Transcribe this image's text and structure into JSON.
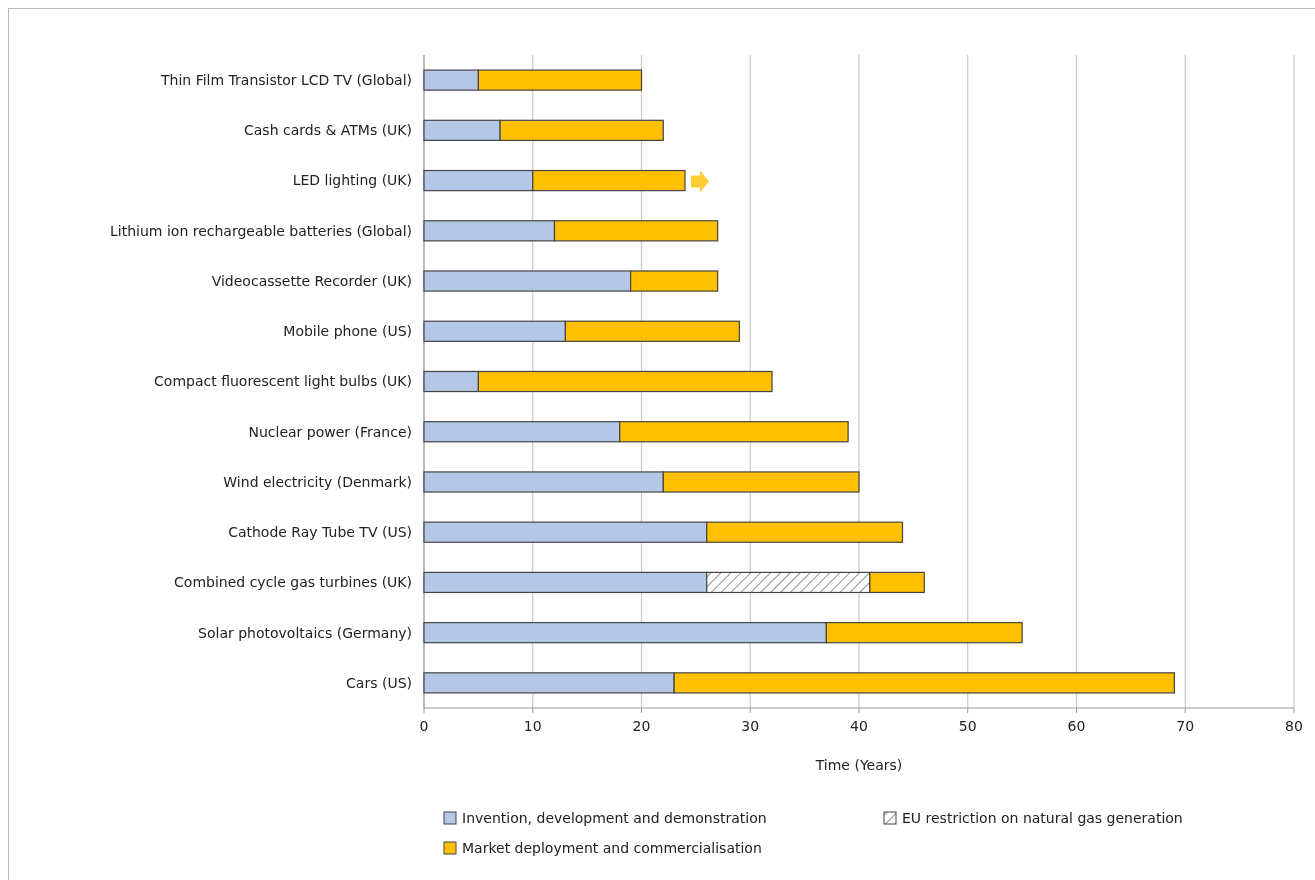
{
  "chart_data": {
    "type": "bar",
    "orientation": "horizontal",
    "stacked": true,
    "xlabel": "Time (Years)",
    "categories": [
      "Thin Film Transistor LCD TV (Global)",
      "Cash cards & ATMs (UK)",
      "LED lighting (UK)",
      "Lithium ion rechargeable batteries (Global)",
      "Videocassette Recorder (UK)",
      "Mobile phone (US)",
      "Compact fluorescent light bulbs (UK)",
      "Nuclear power (France)",
      "Wind electricity (Denmark)",
      "Cathode Ray Tube TV (US)",
      "Combined cycle gas turbines (UK)",
      "Solar photovoltaics (Germany)",
      "Cars (US)"
    ],
    "series": [
      {
        "name": "Invention, development and demonstration",
        "color": "#b4c7e7",
        "values": [
          5,
          7,
          10,
          12,
          19,
          13,
          5,
          18,
          22,
          26,
          26,
          37,
          23
        ]
      },
      {
        "name": "EU restriction on natural gas generation",
        "color": "#444444",
        "values": [
          0,
          0,
          0,
          0,
          0,
          0,
          0,
          0,
          0,
          0,
          15,
          0,
          0
        ]
      },
      {
        "name": "Market deployment and commercialisation",
        "color": "#ffc000",
        "values": [
          15,
          15,
          14,
          15,
          8,
          16,
          27,
          21,
          18,
          18,
          5,
          18,
          46
        ]
      }
    ],
    "xlim": [
      0,
      80
    ],
    "xticks": [
      0,
      10,
      20,
      30,
      40,
      50,
      60,
      70,
      80
    ],
    "grid": "x",
    "legend": "bottom"
  }
}
